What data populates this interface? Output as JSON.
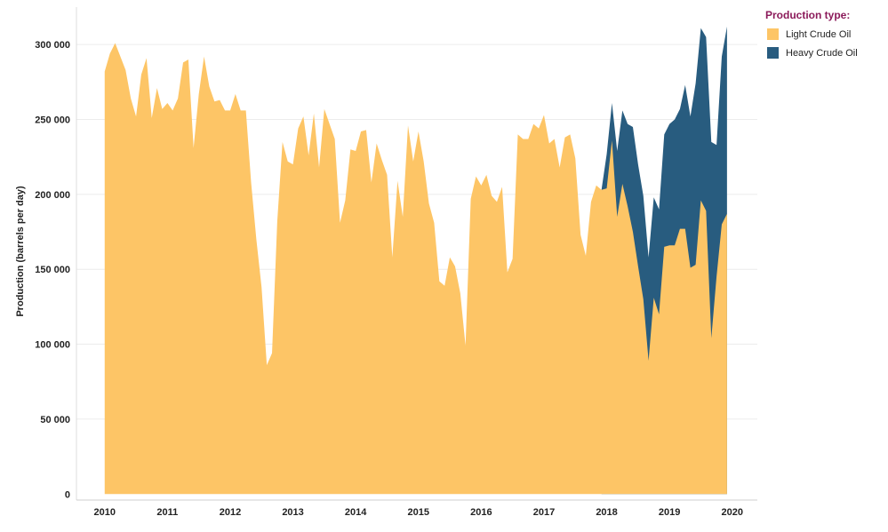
{
  "chart_data": {
    "type": "area",
    "stacked": true,
    "title": "",
    "xlabel": "",
    "ylabel": "Production (barrels per day)",
    "xlim": [
      2009.55,
      2020.4
    ],
    "ylim": [
      -4000,
      325000
    ],
    "x_ticks": [
      2010,
      2011,
      2012,
      2013,
      2014,
      2015,
      2016,
      2017,
      2018,
      2019,
      2020
    ],
    "x_tick_labels": [
      "2010",
      "2011",
      "2012",
      "2013",
      "2014",
      "2015",
      "2016",
      "2017",
      "2018",
      "2019",
      "2020"
    ],
    "y_ticks": [
      0,
      50000,
      100000,
      150000,
      200000,
      250000,
      300000
    ],
    "y_tick_labels": [
      "0",
      "50 000",
      "100 000",
      "150 000",
      "200 000",
      "250 000",
      "300 000"
    ],
    "grid": "horizontal",
    "legend": {
      "title": "Production type:",
      "placement": "top-right"
    },
    "x_start": 2010,
    "x_step_months": 1,
    "series": [
      {
        "name": "Light Crude Oil",
        "color": "#fdc566",
        "values": [
          282000,
          294000,
          301000,
          292000,
          283000,
          264000,
          252000,
          280000,
          291000,
          251000,
          271000,
          257000,
          261000,
          256000,
          264000,
          288000,
          290000,
          231000,
          267000,
          292000,
          272000,
          262000,
          263000,
          256000,
          256000,
          267000,
          256000,
          256000,
          208000,
          170000,
          138000,
          86000,
          94000,
          182000,
          235000,
          222000,
          220000,
          244000,
          252000,
          226000,
          254000,
          218000,
          257000,
          247000,
          237000,
          181000,
          196000,
          230000,
          229000,
          242000,
          243000,
          208000,
          234000,
          223000,
          213000,
          158000,
          209000,
          185000,
          246000,
          222000,
          242000,
          222000,
          194000,
          181000,
          142000,
          139000,
          158000,
          152000,
          134000,
          99000,
          197000,
          212000,
          206000,
          213000,
          199000,
          195000,
          205000,
          148000,
          157000,
          240000,
          237000,
          237000,
          247000,
          244000,
          253000,
          234000,
          237000,
          218000,
          238000,
          240000,
          224000,
          173000,
          159000,
          195000,
          206000,
          203000,
          204000,
          236000,
          185000,
          207000,
          192000,
          175000,
          152000,
          130000,
          89000,
          131000,
          120000,
          165000,
          166000,
          166000,
          177000,
          177000,
          151000,
          153000,
          196000,
          189000,
          104000,
          145000,
          180000,
          187000
        ]
      },
      {
        "name": "Heavy Crude Oil",
        "color": "#285c7f",
        "values": [
          0,
          0,
          0,
          0,
          0,
          0,
          0,
          0,
          0,
          0,
          0,
          0,
          0,
          0,
          0,
          0,
          0,
          0,
          0,
          0,
          0,
          0,
          0,
          0,
          0,
          0,
          0,
          0,
          0,
          0,
          0,
          0,
          0,
          0,
          0,
          0,
          0,
          0,
          0,
          0,
          0,
          0,
          0,
          0,
          0,
          0,
          0,
          0,
          0,
          0,
          0,
          0,
          0,
          0,
          0,
          0,
          0,
          0,
          0,
          0,
          0,
          0,
          0,
          0,
          0,
          0,
          0,
          0,
          0,
          0,
          0,
          0,
          0,
          0,
          0,
          0,
          0,
          0,
          0,
          0,
          0,
          0,
          0,
          0,
          0,
          0,
          0,
          0,
          0,
          0,
          0,
          0,
          0,
          0,
          0,
          0,
          23000,
          25000,
          44000,
          49000,
          55000,
          70000,
          68000,
          69000,
          69000,
          67000,
          70000,
          75000,
          81000,
          84000,
          80000,
          96000,
          101000,
          121000,
          115000,
          116000,
          131000,
          88000,
          112000,
          125000
        ]
      }
    ]
  }
}
